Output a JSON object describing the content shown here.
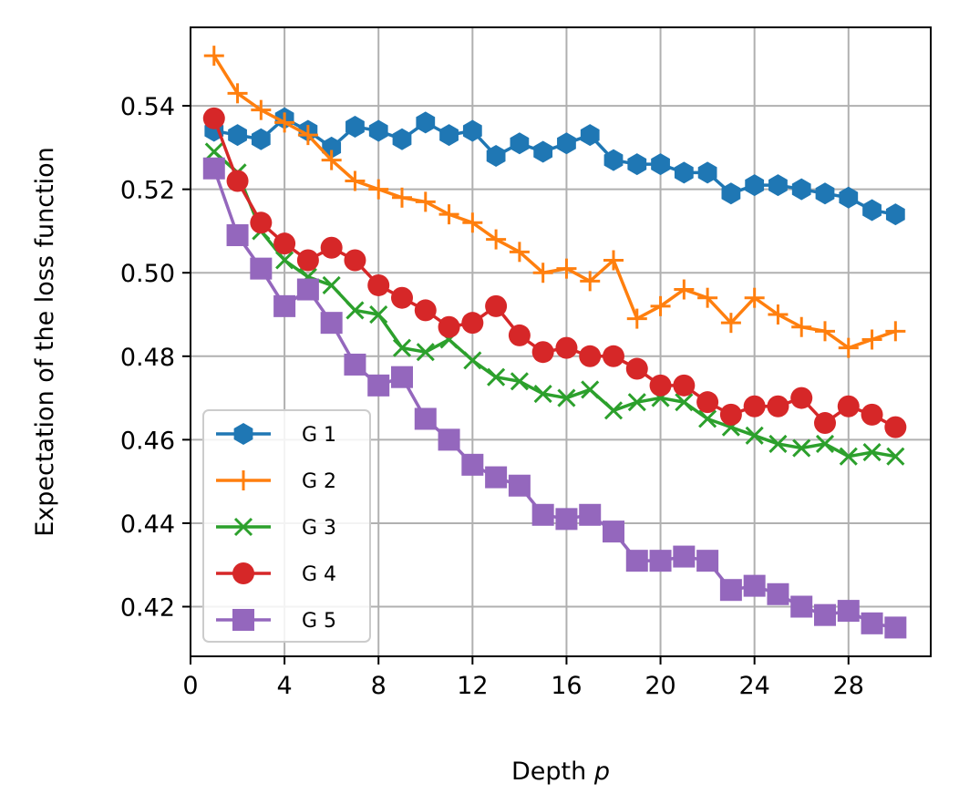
{
  "chart_data": {
    "type": "line",
    "xlabel": "Depth",
    "xlabel_var": "p",
    "ylabel": "Expectation of the loss function",
    "xlim": [
      0,
      31.5
    ],
    "ylim": [
      0.4081,
      0.5588
    ],
    "xticks": [
      0,
      4,
      8,
      12,
      16,
      20,
      24,
      28
    ],
    "yticks": [
      0.42,
      0.44,
      0.46,
      0.48,
      0.5,
      0.52,
      0.54
    ],
    "ytick_labels": [
      "0.42",
      "0.44",
      "0.46",
      "0.48",
      "0.50",
      "0.52",
      "0.54"
    ],
    "grid": true,
    "legend_position": "lower-left",
    "x": [
      1,
      2,
      3,
      4,
      5,
      6,
      7,
      8,
      9,
      10,
      11,
      12,
      13,
      14,
      15,
      16,
      17,
      18,
      19,
      20,
      21,
      22,
      23,
      24,
      25,
      26,
      27,
      28,
      29,
      30
    ],
    "series": [
      {
        "name": "G 1",
        "color": "#1f77b4",
        "marker": "hexagon",
        "values": [
          0.534,
          0.533,
          0.532,
          0.537,
          0.534,
          0.53,
          0.535,
          0.534,
          0.532,
          0.536,
          0.533,
          0.534,
          0.528,
          0.531,
          0.529,
          0.531,
          0.533,
          0.527,
          0.526,
          0.526,
          0.524,
          0.524,
          0.519,
          0.521,
          0.521,
          0.52,
          0.519,
          0.518,
          0.515,
          0.514
        ]
      },
      {
        "name": "G 2",
        "color": "#ff7f0e",
        "marker": "plus",
        "values": [
          0.552,
          0.543,
          0.539,
          0.536,
          0.533,
          0.527,
          0.522,
          0.52,
          0.518,
          0.517,
          0.514,
          0.512,
          0.508,
          0.505,
          0.5,
          0.501,
          0.498,
          0.503,
          0.489,
          0.492,
          0.496,
          0.494,
          0.488,
          0.494,
          0.49,
          0.487,
          0.486,
          0.482,
          0.484,
          0.486
        ]
      },
      {
        "name": "G 3",
        "color": "#2ca02c",
        "marker": "x",
        "values": [
          0.529,
          0.524,
          0.51,
          0.503,
          0.499,
          0.497,
          0.491,
          0.49,
          0.482,
          0.481,
          0.484,
          0.479,
          0.475,
          0.474,
          0.471,
          0.47,
          0.472,
          0.467,
          0.469,
          0.47,
          0.469,
          0.465,
          0.463,
          0.461,
          0.459,
          0.458,
          0.459,
          0.456,
          0.457,
          0.456
        ]
      },
      {
        "name": "G 4",
        "color": "#d62728",
        "marker": "circle",
        "values": [
          0.537,
          0.522,
          0.512,
          0.507,
          0.503,
          0.506,
          0.503,
          0.497,
          0.494,
          0.491,
          0.487,
          0.488,
          0.492,
          0.485,
          0.481,
          0.482,
          0.48,
          0.48,
          0.477,
          0.473,
          0.473,
          0.469,
          0.466,
          0.468,
          0.468,
          0.47,
          0.464,
          0.468,
          0.466,
          0.463
        ]
      },
      {
        "name": "G 5",
        "color": "#9467bd",
        "marker": "square",
        "values": [
          0.525,
          0.509,
          0.501,
          0.492,
          0.496,
          0.488,
          0.478,
          0.473,
          0.475,
          0.465,
          0.46,
          0.454,
          0.451,
          0.449,
          0.442,
          0.441,
          0.442,
          0.438,
          0.431,
          0.431,
          0.432,
          0.431,
          0.424,
          0.425,
          0.423,
          0.42,
          0.418,
          0.419,
          0.416,
          0.415
        ]
      }
    ]
  }
}
